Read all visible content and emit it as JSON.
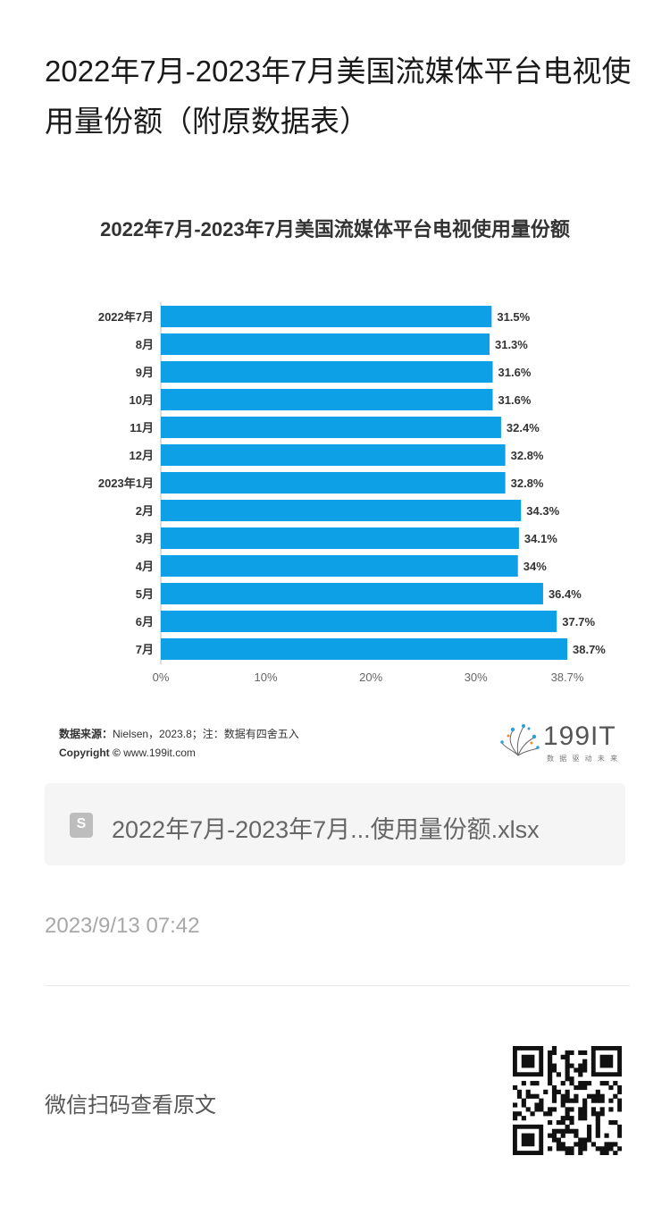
{
  "page_title": "2022年7月-2023年7月美国流媒体平台电视使用量份额（附原数据表）",
  "chart_data": {
    "type": "bar",
    "orientation": "horizontal",
    "title": "2022年7月-2023年7月美国流媒体平台电视使用量份额",
    "categories": [
      "2022年7月",
      "8月",
      "9月",
      "10月",
      "11月",
      "12月",
      "2023年1月",
      "2月",
      "3月",
      "4月",
      "5月",
      "6月",
      "7月"
    ],
    "values": [
      31.5,
      31.3,
      31.6,
      31.6,
      32.4,
      32.8,
      32.8,
      34.3,
      34.1,
      34,
      36.4,
      37.7,
      38.7
    ],
    "value_labels": [
      "31.5%",
      "31.3%",
      "31.6%",
      "31.6%",
      "32.4%",
      "32.8%",
      "32.8%",
      "34.3%",
      "34.1%",
      "34%",
      "36.4%",
      "37.7%",
      "38.7%"
    ],
    "x_ticks": [
      0,
      10,
      20,
      30,
      38.7
    ],
    "x_tick_labels": [
      "0%",
      "10%",
      "20%",
      "30%",
      "38.7%"
    ],
    "xlim": [
      0,
      38.7
    ],
    "bar_color": "#0ea0e6",
    "grid": false
  },
  "source_label": "数据来源：",
  "source_text": "Nielsen，2023.8；注：数据有四舍五入",
  "copyright_label": "Copyright ©",
  "copyright_text": "www.199it.com",
  "brand_name": "199IT",
  "brand_slogan": "数 据 驱 动 未 来",
  "attachment": {
    "icon": "spreadsheet-icon",
    "icon_letter": "S",
    "filename": "2022年7月-2023年7月...使用量份额.xlsx"
  },
  "timestamp": "2023/9/13 07:42",
  "qr_prompt": "微信扫码查看原文",
  "colors": {
    "bar": "#0ea0e6",
    "text_muted": "#a8a8a8"
  }
}
